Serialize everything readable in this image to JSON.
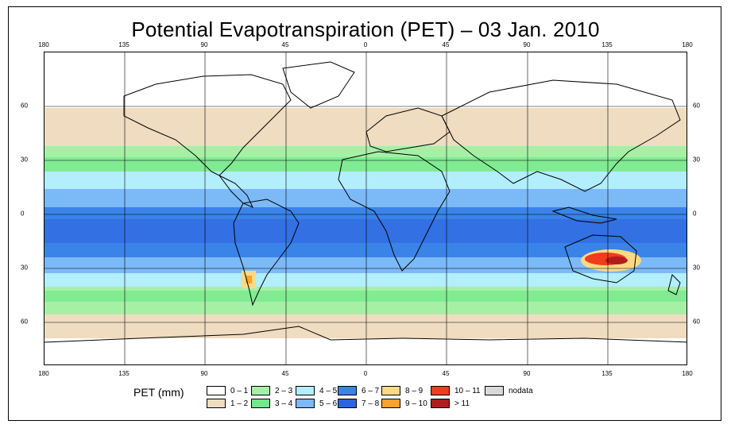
{
  "title": "Potential Evapotranspiration (PET) – 03 Jan. 2010",
  "axes": {
    "lon_ticks": [
      "180",
      "135",
      "90",
      "45",
      "0",
      "45",
      "90",
      "135",
      "180"
    ],
    "lat_ticks": [
      "60",
      "30",
      "0",
      "30",
      "60"
    ]
  },
  "legend": {
    "title": "PET (mm)",
    "items": [
      {
        "label": "0 – 1",
        "color": "#ffffff"
      },
      {
        "label": "1 – 2",
        "color": "#efdcc1"
      },
      {
        "label": "2 – 3",
        "color": "#a6f0a6"
      },
      {
        "label": "3 – 4",
        "color": "#72e88a"
      },
      {
        "label": "4 – 5",
        "color": "#b2eefe"
      },
      {
        "label": "5 – 6",
        "color": "#7cb9f7"
      },
      {
        "label": "6 – 7",
        "color": "#3a83e8"
      },
      {
        "label": "7 – 8",
        "color": "#2d64e0"
      },
      {
        "label": "8 – 9",
        "color": "#fdd985"
      },
      {
        "label": "9 – 10",
        "color": "#fca32a"
      },
      {
        "label": "10 – 11",
        "color": "#f13c1d"
      },
      {
        "label": "> 11",
        "color": "#b31c1c"
      },
      {
        "label": "nodata",
        "color": "#d9d9d9"
      }
    ]
  }
}
